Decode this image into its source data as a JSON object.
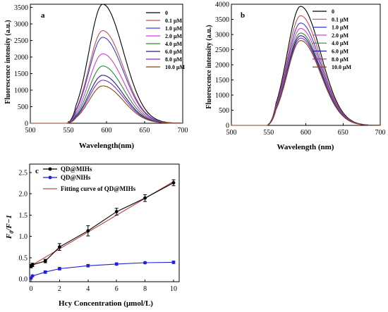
{
  "chart_data": [
    {
      "panel": "a",
      "type": "line",
      "xlabel": "Wavelength(nm)",
      "ylabel": "Fluorescence intensity (a.u.)",
      "xlim": [
        500,
        700
      ],
      "ylim": [
        0,
        3600
      ],
      "xticks": [
        500,
        550,
        600,
        650,
        700
      ],
      "yticks": [
        0,
        500,
        1000,
        1500,
        2000,
        2500,
        3000,
        3500
      ],
      "peak_wavelength": 595,
      "legend_position": "top-right",
      "series": [
        {
          "name": "0",
          "peak": 3600,
          "color": "#000000"
        },
        {
          "name": "0.1 μM",
          "peak": 2800,
          "color": "#c0504d"
        },
        {
          "name": "1.0 μM",
          "peak": 2600,
          "color": "#3b3bd6"
        },
        {
          "name": "2.0 μM",
          "peak": 2100,
          "color": "#d040d0"
        },
        {
          "name": "4.0 μM",
          "peak": 1730,
          "color": "#2e8b2e"
        },
        {
          "name": "6.0 μM",
          "peak": 1450,
          "color": "#1f1f8f"
        },
        {
          "name": "8.0 μM",
          "peak": 1300,
          "color": "#7b2fbe"
        },
        {
          "name": "10.0 μM",
          "peak": 1130,
          "color": "#8b4513"
        }
      ]
    },
    {
      "panel": "b",
      "type": "line",
      "xlabel": "Wavelength (nm)",
      "ylabel": "Fluorescence intensity (a.u.)",
      "xlim": [
        500,
        700
      ],
      "ylim": [
        0,
        4000
      ],
      "xticks": [
        500,
        550,
        600,
        650,
        700
      ],
      "yticks": [
        0,
        500,
        1000,
        1500,
        2000,
        2500,
        3000,
        3500,
        4000
      ],
      "peak_wavelength": 593,
      "legend_position": "top-right",
      "series": [
        {
          "name": "0",
          "peak": 3930,
          "color": "#000000"
        },
        {
          "name": "0.1 μM",
          "peak": 3620,
          "color": "#c0504d"
        },
        {
          "name": "1.0 μM",
          "peak": 3380,
          "color": "#3b3bd6"
        },
        {
          "name": "2.0 μM",
          "peak": 3200,
          "color": "#d040d0"
        },
        {
          "name": "4.0 μM",
          "peak": 3050,
          "color": "#2e8b2e"
        },
        {
          "name": "6.0 μM",
          "peak": 2960,
          "color": "#1f1f8f"
        },
        {
          "name": "8.0 μM",
          "peak": 2880,
          "color": "#7b2fbe"
        },
        {
          "name": "10.0 μM",
          "peak": 2800,
          "color": "#8b4513"
        }
      ]
    },
    {
      "panel": "c",
      "type": "scatter",
      "xlabel": "Hcy Concentration (μmol/L)",
      "ylabel": "F0/F−1",
      "xlim": [
        0,
        10
      ],
      "ylim": [
        0,
        2.5
      ],
      "xticks": [
        0,
        2,
        4,
        6,
        8,
        10
      ],
      "yticks": [
        0.0,
        0.5,
        1.0,
        1.5,
        2.0,
        2.5
      ],
      "legend_position": "top-left",
      "series": [
        {
          "name": "QD@MIHs",
          "color": "#000000",
          "marker": "circle",
          "x": [
            0,
            0.1,
            1,
            2,
            4,
            6,
            8,
            10
          ],
          "y": [
            0.3,
            0.33,
            0.42,
            0.75,
            1.13,
            1.58,
            1.9,
            2.26
          ],
          "err": [
            0.04,
            0.04,
            0.04,
            0.08,
            0.12,
            0.08,
            0.08,
            0.07
          ]
        },
        {
          "name": "QD@NIHs",
          "color": "#1f1fd6",
          "marker": "circle",
          "x": [
            0,
            0.1,
            1,
            2,
            4,
            6,
            8,
            10
          ],
          "y": [
            0.02,
            0.07,
            0.16,
            0.24,
            0.31,
            0.35,
            0.38,
            0.39
          ],
          "err": [
            0.02,
            0.02,
            0.03,
            0.03,
            0.03,
            0.03,
            0.02,
            0.03
          ]
        },
        {
          "name": "Fitting curve of QD@MIHs",
          "color": "#c0504d",
          "type": "line",
          "x": [
            0,
            10
          ],
          "y": [
            0.31,
            2.29
          ]
        }
      ]
    }
  ]
}
